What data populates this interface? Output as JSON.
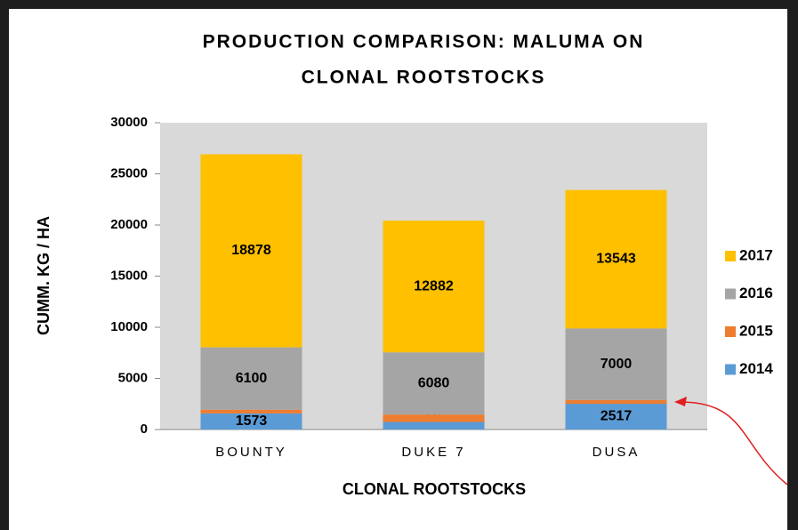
{
  "chart_data": {
    "type": "stacked_bar",
    "title": [
      "PRODUCTION COMPARISON: MALUMA ON",
      "CLONAL ROOTSTOCKS"
    ],
    "x_label": "CLONAL ROOTSTOCKS",
    "y_label": "CUMM. KG / HA",
    "categories": [
      "BOUNTY",
      "DUKE 7",
      "DUSA"
    ],
    "series": [
      {
        "name": "2014",
        "color": "#5b9bd5",
        "values": [
          1573,
          737,
          2517
        ]
      },
      {
        "name": "2015",
        "color": "#ed7d31",
        "values": [
          364,
          729,
          365
        ]
      },
      {
        "name": "2016",
        "color": "#a5a5a5",
        "values": [
          6100,
          6080,
          7000
        ]
      },
      {
        "name": "2017",
        "color": "#ffc000",
        "values": [
          18878,
          12882,
          13543
        ]
      }
    ],
    "ylim": [
      0,
      30000
    ],
    "yticks": [
      0,
      5000,
      10000,
      15000,
      20000,
      25000,
      30000
    ],
    "legend": "right"
  }
}
